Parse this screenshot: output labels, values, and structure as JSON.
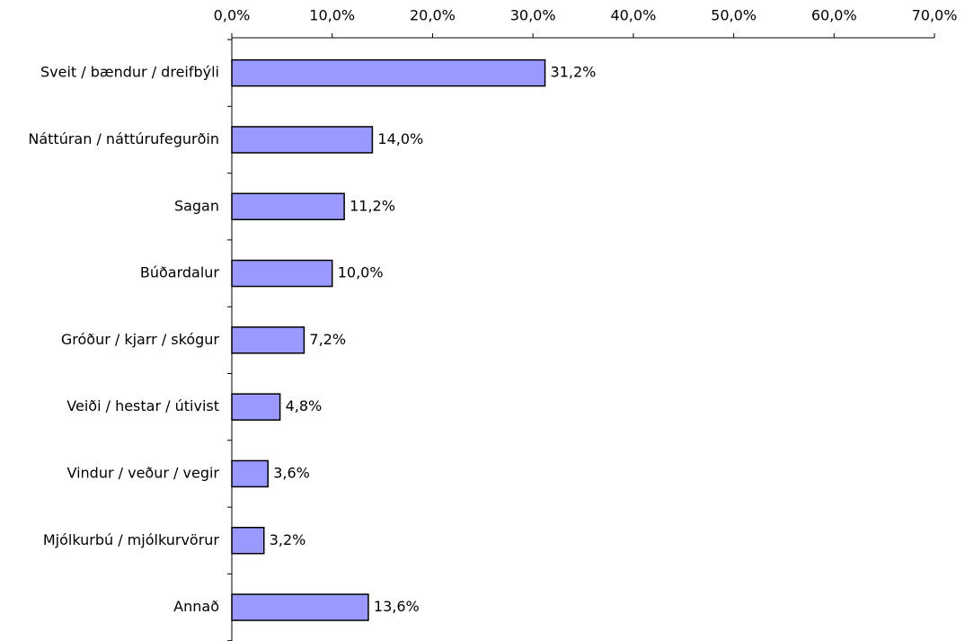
{
  "chart_data": {
    "type": "hbar",
    "categories": [
      "Sveit / bændur / dreifbýli",
      "Náttúran / náttúrufegurðin",
      "Sagan",
      "Búðardalur",
      "Gróður / kjarr / skógur",
      "Veiði / hestar / útivist",
      "Vindur / veður / vegir",
      "Mjólkurbú / mjólkurvörur",
      "Annað"
    ],
    "values": [
      31.2,
      14.0,
      11.2,
      10.0,
      7.2,
      4.8,
      3.6,
      3.2,
      13.6
    ],
    "value_labels": [
      "31,2%",
      "14,0%",
      "11,2%",
      "10,0%",
      "7,2%",
      "4,8%",
      "3,6%",
      "3,2%",
      "13,6%"
    ],
    "color": "#9999ff",
    "xlim": [
      0,
      70
    ],
    "xticks": [
      {
        "value": 0,
        "label": "0,0%"
      },
      {
        "value": 10,
        "label": "10,0%"
      },
      {
        "value": 20,
        "label": "20,0%"
      },
      {
        "value": 30,
        "label": "30,0%"
      },
      {
        "value": 40,
        "label": "40,0%"
      },
      {
        "value": 50,
        "label": "50,0%"
      },
      {
        "value": 60,
        "label": "60,0%"
      },
      {
        "value": 70,
        "label": "70,0%"
      }
    ],
    "grid": false
  }
}
